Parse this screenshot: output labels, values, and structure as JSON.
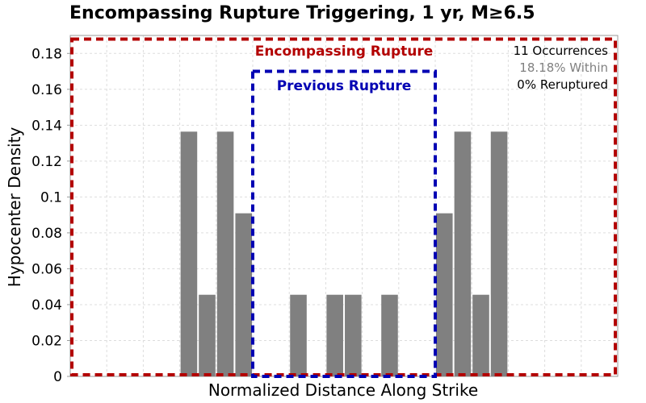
{
  "chart_data": {
    "type": "bar",
    "title": "Encompassing Rupture Triggering, 1 yr, M≥6.5",
    "xlabel": "Normalized Distance Along Strike",
    "ylabel": "Hypocenter Density",
    "xlim": [
      0,
      1
    ],
    "ylim": [
      0,
      0.19
    ],
    "yticks": [
      "0",
      "0.02",
      "0.04",
      "0.06",
      "0.08",
      "0.1",
      "0.12",
      "0.14",
      "0.16",
      "0.18"
    ],
    "ytick_values": [
      0,
      0.02,
      0.04,
      0.06,
      0.08,
      0.1,
      0.12,
      0.14,
      0.16,
      0.18
    ],
    "bin_width": 0.0333,
    "bars": [
      {
        "x": 0.2167,
        "value": 0.1364
      },
      {
        "x": 0.25,
        "value": 0.0455
      },
      {
        "x": 0.2833,
        "value": 0.1364
      },
      {
        "x": 0.3167,
        "value": 0.0909
      },
      {
        "x": 0.4167,
        "value": 0.0455
      },
      {
        "x": 0.4833,
        "value": 0.0455
      },
      {
        "x": 0.5167,
        "value": 0.0455
      },
      {
        "x": 0.5833,
        "value": 0.0455
      },
      {
        "x": 0.6833,
        "value": 0.0909
      },
      {
        "x": 0.7167,
        "value": 0.1364
      },
      {
        "x": 0.75,
        "value": 0.0455
      },
      {
        "x": 0.7833,
        "value": 0.1364
      }
    ],
    "bar_color": "#808080",
    "grid": true,
    "encompassing_rupture": {
      "label": "Encompassing Rupture",
      "x_range": [
        0,
        1
      ],
      "y_top": 0.188,
      "color": "#b30000"
    },
    "previous_rupture": {
      "label": "Previous Rupture",
      "x_range": [
        0.3333,
        0.6667
      ],
      "y_top": 0.17,
      "color": "#0000b3"
    },
    "annotations": {
      "occurrences": "11 Occurrences",
      "within": "18.18% Within",
      "reruptured": "0% Reruptured",
      "within_color": "#808080"
    }
  }
}
